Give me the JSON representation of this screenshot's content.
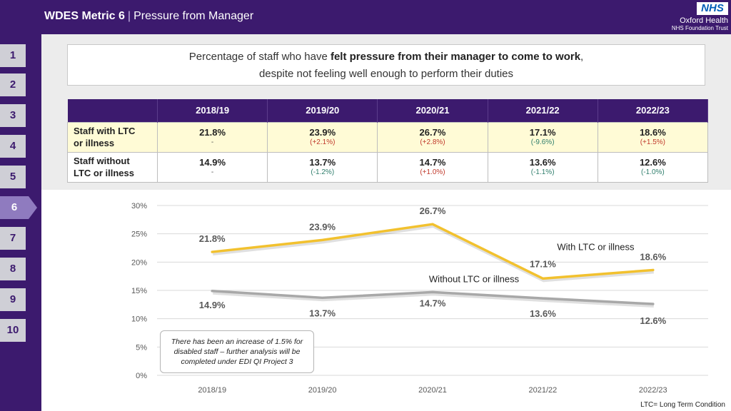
{
  "header": {
    "title_bold": "WDES Metric 6",
    "separator": "|",
    "title_rest": "Pressure from Manager",
    "logo_text": "NHS",
    "org_name": "Oxford Health",
    "org_sub": "NHS Foundation Trust"
  },
  "nav": [
    "1",
    "2",
    "3",
    "4",
    "5",
    "6",
    "7",
    "8",
    "9",
    "10"
  ],
  "nav_active": "6",
  "question": {
    "part1": "Percentage of staff who have ",
    "bold": "felt pressure from their manager to come to work",
    "part2": ",",
    "line2": "despite not feeling well enough to perform their duties"
  },
  "table": {
    "years": [
      "2018/19",
      "2019/20",
      "2020/21",
      "2021/22",
      "2022/23"
    ],
    "rows": [
      {
        "label": "Staff with LTC or illness",
        "label_line1": "Staff with LTC",
        "label_line2": "or illness",
        "values": [
          "21.8%",
          "23.9%",
          "26.7%",
          "17.1%",
          "18.6%"
        ],
        "changes": [
          "-",
          "(+2.1%)",
          "(+2.8%)",
          "(-9.6%)",
          "(+1.5%)"
        ]
      },
      {
        "label": "Staff without LTC or illness",
        "label_line1": "Staff without",
        "label_line2": "LTC or illness",
        "values": [
          "14.9%",
          "13.7%",
          "14.7%",
          "13.6%",
          "12.6%"
        ],
        "changes": [
          "-",
          "(-1.2%)",
          "(+1.0%)",
          "(-1.1%)",
          "(-1.0%)"
        ]
      }
    ]
  },
  "chart_data": {
    "type": "line",
    "categories": [
      "2018/19",
      "2019/20",
      "2020/21",
      "2021/22",
      "2022/23"
    ],
    "series": [
      {
        "name": "With LTC or illness",
        "values": [
          21.8,
          23.9,
          26.7,
          17.1,
          18.6
        ],
        "labels": [
          "21.8%",
          "23.9%",
          "26.7%",
          "17.1%",
          "18.6%"
        ],
        "color": "#f2c12e"
      },
      {
        "name": "Without LTC or illness",
        "values": [
          14.9,
          13.7,
          14.7,
          13.6,
          12.6
        ],
        "labels": [
          "14.9%",
          "13.7%",
          "14.7%",
          "13.6%",
          "12.6%"
        ],
        "color": "#a8a8a8"
      }
    ],
    "ylim": [
      0,
      30
    ],
    "yticks": [
      0,
      5,
      10,
      15,
      20,
      25,
      30
    ],
    "ytick_labels": [
      "0%",
      "5%",
      "10%",
      "15%",
      "20%",
      "25%",
      "30%"
    ],
    "grid": true,
    "title": "",
    "xlabel": "",
    "ylabel": ""
  },
  "note": {
    "line1": "There has been an increase of 1.5% for",
    "line2": "disabled staff – further analysis will be",
    "line3": "completed under EDI QI Project 3"
  },
  "footnote": "LTC= Long Term Condition",
  "colors": {
    "brand_purple": "#3c1a6e",
    "nav_active": "#8f7bbf",
    "highlight_row": "#fffbd6"
  }
}
